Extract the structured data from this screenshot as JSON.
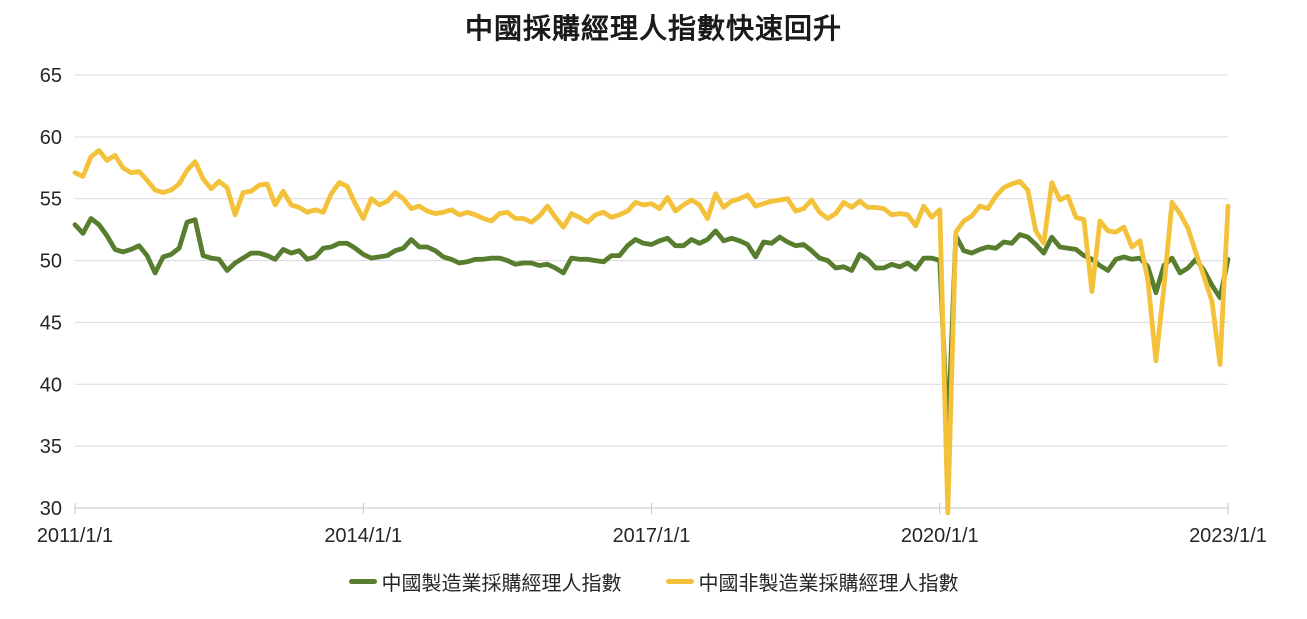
{
  "chart_data": {
    "type": "line",
    "title": "中國採購經理人指數快速回升",
    "xlabel": "",
    "ylabel": "",
    "x_unit": "month",
    "x_range": [
      "2011/1/1",
      "2023/1/1"
    ],
    "x_tick_labels": [
      "2011/1/1",
      "2014/1/1",
      "2017/1/1",
      "2020/1/1",
      "2023/1/1"
    ],
    "x_tick_month_index": [
      0,
      36,
      72,
      108,
      144
    ],
    "y_ticks": [
      "30",
      "35",
      "40",
      "45",
      "50",
      "55",
      "60",
      "65"
    ],
    "ylim": [
      30,
      65
    ],
    "grid": "horizontal",
    "legend_position": "bottom",
    "colors": {
      "grid": "#d9d9d9",
      "axis": "#c6c6c6",
      "tick_text": "#262626",
      "title_text": "#1a1a1a"
    },
    "series": [
      {
        "name": "中國製造業採購經理人指數",
        "color": "#587d2e",
        "start": "2011-01",
        "values": [
          52.9,
          52.2,
          53.4,
          52.9,
          52.0,
          50.9,
          50.7,
          50.9,
          51.2,
          50.4,
          49.0,
          50.3,
          50.5,
          51.0,
          53.1,
          53.3,
          50.4,
          50.2,
          50.1,
          49.2,
          49.8,
          50.2,
          50.6,
          50.6,
          50.4,
          50.1,
          50.9,
          50.6,
          50.8,
          50.1,
          50.3,
          51.0,
          51.1,
          51.4,
          51.4,
          51.0,
          50.5,
          50.2,
          50.3,
          50.4,
          50.8,
          51.0,
          51.7,
          51.1,
          51.1,
          50.8,
          50.3,
          50.1,
          49.8,
          49.9,
          50.1,
          50.1,
          50.2,
          50.2,
          50.0,
          49.7,
          49.8,
          49.8,
          49.6,
          49.7,
          49.4,
          49.0,
          50.2,
          50.1,
          50.1,
          50.0,
          49.9,
          50.4,
          50.4,
          51.2,
          51.7,
          51.4,
          51.3,
          51.6,
          51.8,
          51.2,
          51.2,
          51.7,
          51.4,
          51.7,
          52.4,
          51.6,
          51.8,
          51.6,
          51.3,
          50.3,
          51.5,
          51.4,
          51.9,
          51.5,
          51.2,
          51.3,
          50.8,
          50.2,
          50.0,
          49.4,
          49.5,
          49.2,
          50.5,
          50.1,
          49.4,
          49.4,
          49.7,
          49.5,
          49.8,
          49.3,
          50.2,
          50.2,
          50.0,
          35.7,
          52.0,
          50.8,
          50.6,
          50.9,
          51.1,
          51.0,
          51.5,
          51.4,
          52.1,
          51.9,
          51.3,
          50.6,
          51.9,
          51.1,
          51.0,
          50.9,
          50.4,
          50.1,
          49.6,
          49.2,
          50.1,
          50.3,
          50.1,
          50.2,
          49.5,
          47.4,
          49.6,
          50.2,
          49.0,
          49.4,
          50.1,
          49.2,
          48.0,
          47.0,
          50.1
        ]
      },
      {
        "name": "中國非製造業採購經理人指數",
        "color": "#f3c13a",
        "start": "2011-01",
        "values": [
          57.1,
          56.8,
          58.4,
          58.9,
          58.1,
          58.5,
          57.5,
          57.1,
          57.2,
          56.5,
          55.7,
          55.5,
          55.7,
          56.2,
          57.3,
          58.0,
          56.6,
          55.8,
          56.4,
          55.9,
          53.7,
          55.5,
          55.6,
          56.1,
          56.2,
          54.5,
          55.6,
          54.5,
          54.3,
          53.9,
          54.1,
          53.9,
          55.4,
          56.3,
          56.0,
          54.6,
          53.4,
          55.0,
          54.5,
          54.8,
          55.5,
          55.0,
          54.2,
          54.4,
          54.0,
          53.8,
          53.9,
          54.1,
          53.7,
          53.9,
          53.7,
          53.4,
          53.2,
          53.8,
          53.9,
          53.4,
          53.4,
          53.1,
          53.6,
          54.4,
          53.5,
          52.7,
          53.8,
          53.5,
          53.1,
          53.7,
          53.9,
          53.5,
          53.7,
          54.0,
          54.7,
          54.5,
          54.6,
          54.2,
          55.1,
          54.0,
          54.5,
          54.9,
          54.5,
          53.4,
          55.4,
          54.3,
          54.8,
          55.0,
          55.3,
          54.4,
          54.6,
          54.8,
          54.9,
          55.0,
          54.0,
          54.2,
          54.9,
          53.9,
          53.4,
          53.8,
          54.7,
          54.3,
          54.8,
          54.3,
          54.3,
          54.2,
          53.7,
          53.8,
          53.7,
          52.8,
          54.4,
          53.5,
          54.1,
          29.6,
          52.3,
          53.2,
          53.6,
          54.4,
          54.2,
          55.2,
          55.9,
          56.2,
          56.4,
          55.7,
          52.4,
          51.4,
          56.3,
          54.9,
          55.2,
          53.5,
          53.3,
          47.5,
          53.2,
          52.4,
          52.3,
          52.7,
          51.1,
          51.6,
          48.4,
          41.9,
          47.8,
          54.7,
          53.8,
          52.6,
          50.6,
          48.7,
          46.7,
          41.6,
          54.4
        ]
      }
    ]
  }
}
